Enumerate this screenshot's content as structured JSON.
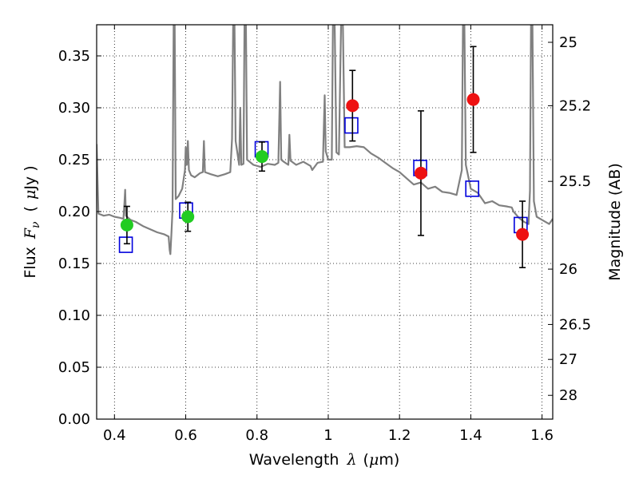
{
  "chart_data": {
    "type": "scatter",
    "xlabel": "Wavelength",
    "xlabel_symbol": "λ",
    "xlabel_unit_open": "(",
    "xlabel_unit_mu": "μ",
    "xlabel_unit_rest": "m)",
    "ylabel": "Flux",
    "ylabel_symbol_F": "F",
    "ylabel_symbol_sub": "ν",
    "ylabel_unit_open": "(",
    "ylabel_unit_mu": "μ",
    "ylabel_unit_rest": "Jy )",
    "y2label": "Magnitude (AB)",
    "xlim": [
      0.35,
      1.63
    ],
    "ylim": [
      0.0,
      0.38
    ],
    "grid": true,
    "x_ticks": [
      {
        "value": 0.4,
        "label": "0.4"
      },
      {
        "value": 0.6,
        "label": "0.6"
      },
      {
        "value": 0.8,
        "label": "0.8"
      },
      {
        "value": 1.0,
        "label": "1"
      },
      {
        "value": 1.2,
        "label": "1.2"
      },
      {
        "value": 1.4,
        "label": "1.4"
      },
      {
        "value": 1.6,
        "label": "1.6"
      }
    ],
    "y_ticks": [
      {
        "value": 0.0,
        "label": "0.00"
      },
      {
        "value": 0.05,
        "label": "0.05"
      },
      {
        "value": 0.1,
        "label": "0.10"
      },
      {
        "value": 0.15,
        "label": "0.15"
      },
      {
        "value": 0.2,
        "label": "0.20"
      },
      {
        "value": 0.25,
        "label": "0.25"
      },
      {
        "value": 0.3,
        "label": "0.30"
      },
      {
        "value": 0.35,
        "label": "0.35"
      }
    ],
    "y2_ticks": [
      {
        "mag": 25.0,
        "label": "25"
      },
      {
        "mag": 25.2,
        "label": "25.2"
      },
      {
        "mag": 25.5,
        "label": "25.5"
      },
      {
        "mag": 26.0,
        "label": "26"
      },
      {
        "mag": 26.5,
        "label": "26.5"
      },
      {
        "mag": 27.0,
        "label": "27"
      },
      {
        "mag": 28.0,
        "label": "28"
      }
    ],
    "series": [
      {
        "name": "green photometry",
        "marker": "circle",
        "color": "#22cc22",
        "points": [
          {
            "x": 0.435,
            "y": 0.187,
            "err": 0.018
          },
          {
            "x": 0.606,
            "y": 0.195,
            "err": 0.014
          },
          {
            "x": 0.814,
            "y": 0.253,
            "err": 0.014
          }
        ]
      },
      {
        "name": "red photometry",
        "marker": "circle",
        "color": "#ee1111",
        "points": [
          {
            "x": 1.068,
            "y": 0.302,
            "err": 0.034
          },
          {
            "x": 1.26,
            "y": 0.237,
            "err": 0.06
          },
          {
            "x": 1.407,
            "y": 0.308,
            "err": 0.051
          },
          {
            "x": 1.545,
            "y": 0.178,
            "err": 0.032
          }
        ]
      },
      {
        "name": "model band flux",
        "marker": "open-square",
        "color": "#0000dd",
        "points": [
          {
            "x": 0.432,
            "y": 0.168
          },
          {
            "x": 0.601,
            "y": 0.201
          },
          {
            "x": 0.813,
            "y": 0.26
          },
          {
            "x": 1.065,
            "y": 0.283
          },
          {
            "x": 1.258,
            "y": 0.242
          },
          {
            "x": 1.404,
            "y": 0.222
          },
          {
            "x": 1.54,
            "y": 0.187
          }
        ]
      },
      {
        "name": "model spectrum",
        "marker": "line",
        "color": "#808080",
        "points": [
          [
            0.35,
            0.265
          ],
          [
            0.355,
            0.198
          ],
          [
            0.37,
            0.196
          ],
          [
            0.385,
            0.197
          ],
          [
            0.4,
            0.195
          ],
          [
            0.415,
            0.194
          ],
          [
            0.425,
            0.193
          ],
          [
            0.428,
            0.208
          ],
          [
            0.43,
            0.221
          ],
          [
            0.432,
            0.196
          ],
          [
            0.445,
            0.192
          ],
          [
            0.46,
            0.19
          ],
          [
            0.48,
            0.186
          ],
          [
            0.5,
            0.183
          ],
          [
            0.52,
            0.18
          ],
          [
            0.54,
            0.178
          ],
          [
            0.552,
            0.176
          ],
          [
            0.555,
            0.163
          ],
          [
            0.557,
            0.159
          ],
          [
            0.56,
            0.18
          ],
          [
            0.563,
            0.202
          ],
          [
            0.566,
            0.38
          ],
          [
            0.569,
            0.38
          ],
          [
            0.572,
            0.212
          ],
          [
            0.58,
            0.215
          ],
          [
            0.59,
            0.222
          ],
          [
            0.598,
            0.24
          ],
          [
            0.6,
            0.262
          ],
          [
            0.603,
            0.245
          ],
          [
            0.606,
            0.268
          ],
          [
            0.609,
            0.24
          ],
          [
            0.615,
            0.235
          ],
          [
            0.625,
            0.233
          ],
          [
            0.64,
            0.237
          ],
          [
            0.648,
            0.238
          ],
          [
            0.651,
            0.268
          ],
          [
            0.654,
            0.238
          ],
          [
            0.67,
            0.236
          ],
          [
            0.69,
            0.234
          ],
          [
            0.71,
            0.236
          ],
          [
            0.725,
            0.238
          ],
          [
            0.73,
            0.27
          ],
          [
            0.733,
            0.38
          ],
          [
            0.737,
            0.38
          ],
          [
            0.74,
            0.268
          ],
          [
            0.75,
            0.245
          ],
          [
            0.753,
            0.3
          ],
          [
            0.756,
            0.245
          ],
          [
            0.762,
            0.246
          ],
          [
            0.765,
            0.38
          ],
          [
            0.769,
            0.38
          ],
          [
            0.772,
            0.25
          ],
          [
            0.79,
            0.245
          ],
          [
            0.81,
            0.243
          ],
          [
            0.83,
            0.246
          ],
          [
            0.85,
            0.245
          ],
          [
            0.86,
            0.247
          ],
          [
            0.865,
            0.325
          ],
          [
            0.868,
            0.25
          ],
          [
            0.875,
            0.248
          ],
          [
            0.888,
            0.245
          ],
          [
            0.891,
            0.274
          ],
          [
            0.894,
            0.249
          ],
          [
            0.91,
            0.245
          ],
          [
            0.93,
            0.248
          ],
          [
            0.95,
            0.244
          ],
          [
            0.955,
            0.24
          ],
          [
            0.97,
            0.247
          ],
          [
            0.985,
            0.248
          ],
          [
            0.99,
            0.312
          ],
          [
            0.993,
            0.258
          ],
          [
            1.0,
            0.25
          ],
          [
            1.01,
            0.25
          ],
          [
            1.013,
            0.38
          ],
          [
            1.018,
            0.38
          ],
          [
            1.023,
            0.257
          ],
          [
            1.03,
            0.255
          ],
          [
            1.036,
            0.38
          ],
          [
            1.041,
            0.38
          ],
          [
            1.046,
            0.262
          ],
          [
            1.06,
            0.262
          ],
          [
            1.08,
            0.263
          ],
          [
            1.1,
            0.262
          ],
          [
            1.12,
            0.256
          ],
          [
            1.14,
            0.252
          ],
          [
            1.16,
            0.247
          ],
          [
            1.18,
            0.242
          ],
          [
            1.2,
            0.238
          ],
          [
            1.22,
            0.232
          ],
          [
            1.24,
            0.226
          ],
          [
            1.26,
            0.228
          ],
          [
            1.28,
            0.222
          ],
          [
            1.3,
            0.224
          ],
          [
            1.32,
            0.219
          ],
          [
            1.34,
            0.218
          ],
          [
            1.36,
            0.216
          ],
          [
            1.375,
            0.24
          ],
          [
            1.378,
            0.38
          ],
          [
            1.382,
            0.38
          ],
          [
            1.386,
            0.245
          ],
          [
            1.4,
            0.222
          ],
          [
            1.42,
            0.218
          ],
          [
            1.44,
            0.208
          ],
          [
            1.46,
            0.21
          ],
          [
            1.48,
            0.206
          ],
          [
            1.5,
            0.205
          ],
          [
            1.515,
            0.204
          ],
          [
            1.52,
            0.2
          ],
          [
            1.535,
            0.194
          ],
          [
            1.55,
            0.19
          ],
          [
            1.562,
            0.188
          ],
          [
            1.566,
            0.22
          ],
          [
            1.569,
            0.38
          ],
          [
            1.573,
            0.38
          ],
          [
            1.577,
            0.21
          ],
          [
            1.585,
            0.195
          ],
          [
            1.6,
            0.192
          ],
          [
            1.62,
            0.188
          ],
          [
            1.63,
            0.193
          ]
        ]
      }
    ]
  }
}
